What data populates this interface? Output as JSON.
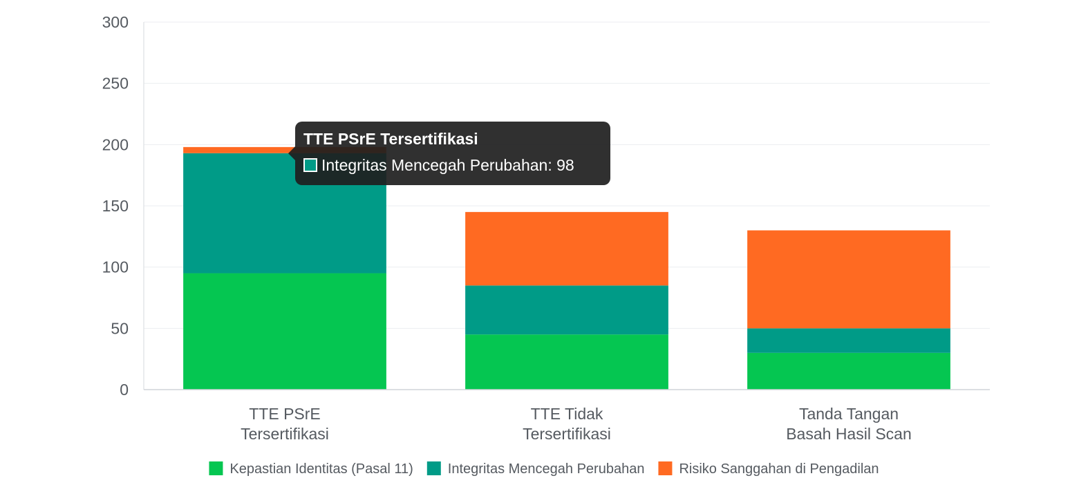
{
  "chart_data": {
    "type": "bar",
    "stacked": true,
    "categories": [
      [
        "TTE PSrE",
        "Tersertifikasi"
      ],
      [
        "TTE Tidak",
        "Tersertifikasi"
      ],
      [
        "Tanda Tangan",
        "Basah Hasil Scan"
      ]
    ],
    "series": [
      {
        "name": "Kepastian Identitas (Pasal 11)",
        "color": "#05c651",
        "values": [
          95,
          45,
          30
        ]
      },
      {
        "name": "Integritas Mencegah Perubahan",
        "color": "#009b87",
        "values": [
          98,
          40,
          20
        ]
      },
      {
        "name": "Risiko Sanggahan di Pengadilan",
        "color": "#ff6a22",
        "values": [
          5,
          60,
          80
        ]
      }
    ],
    "ylim": [
      0,
      300
    ],
    "yticks": [
      0,
      50,
      100,
      150,
      200,
      250,
      300
    ],
    "grid": true,
    "legend": "bottom",
    "tooltip": {
      "title": "TTE PSrE Tersertifikasi",
      "label": "Integritas Mencegah Perubahan: 98",
      "color": "#009b87",
      "category_index": 0
    }
  }
}
